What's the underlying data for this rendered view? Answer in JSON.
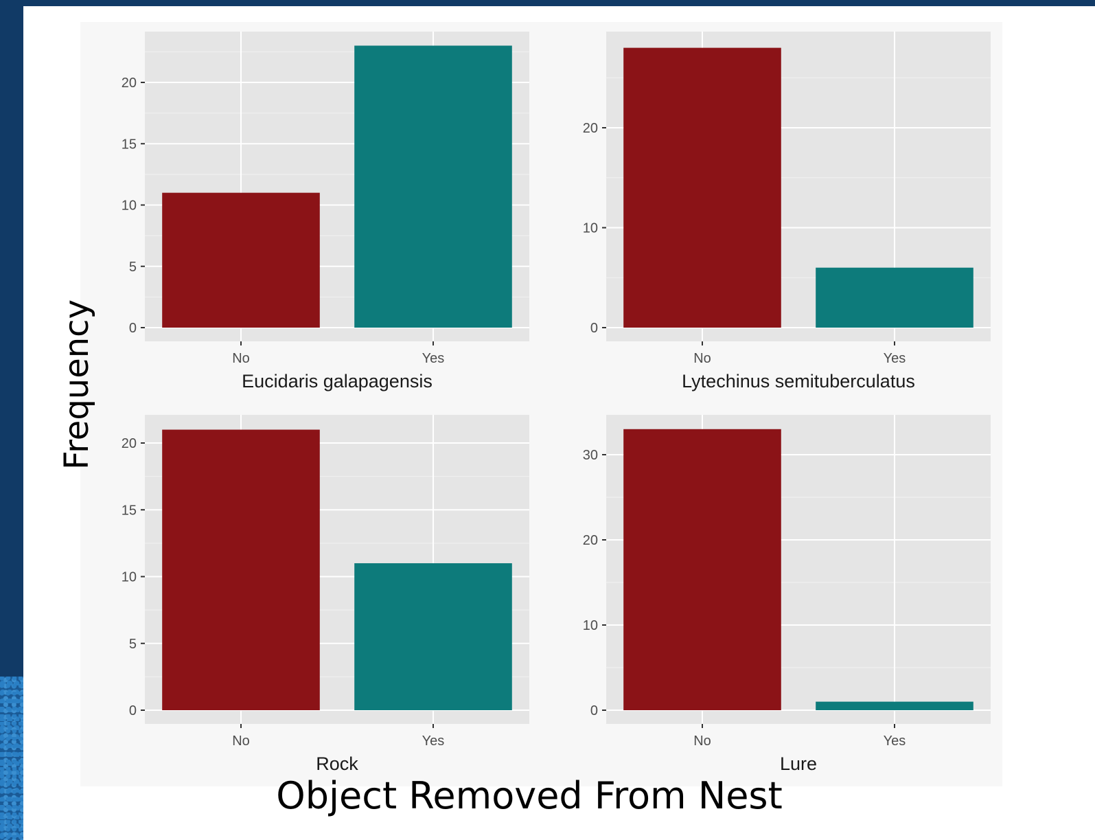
{
  "colors": {
    "background": "#113a66",
    "panel_bg": "#e5e5e5",
    "no_bar": "#8b1317",
    "yes_bar": "#0d7b7b"
  },
  "chart_data": {
    "type": "bar",
    "ylabel": "Frequency",
    "xlabel": "Object Removed From Nest",
    "grid": true,
    "legend": "none",
    "panels": [
      {
        "facet": "Eucidaris galapagensis",
        "categories": [
          "No",
          "Yes"
        ],
        "values": [
          11,
          23
        ],
        "ylim": [
          0,
          24
        ],
        "yticks": [
          0,
          5,
          10,
          15,
          20
        ]
      },
      {
        "facet": "Lytechinus semituberculatus",
        "categories": [
          "No",
          "Yes"
        ],
        "values": [
          28,
          6
        ],
        "ylim": [
          0,
          28
        ],
        "yticks": [
          0,
          10,
          20
        ]
      },
      {
        "facet": "Rock",
        "categories": [
          "No",
          "Yes"
        ],
        "values": [
          21,
          11
        ],
        "ylim": [
          0,
          22
        ],
        "yticks": [
          0,
          5,
          10,
          15,
          20
        ]
      },
      {
        "facet": "Lure",
        "categories": [
          "No",
          "Yes"
        ],
        "values": [
          33,
          1
        ],
        "ylim": [
          0,
          33
        ],
        "yticks": [
          0,
          10,
          20,
          30
        ]
      }
    ]
  }
}
